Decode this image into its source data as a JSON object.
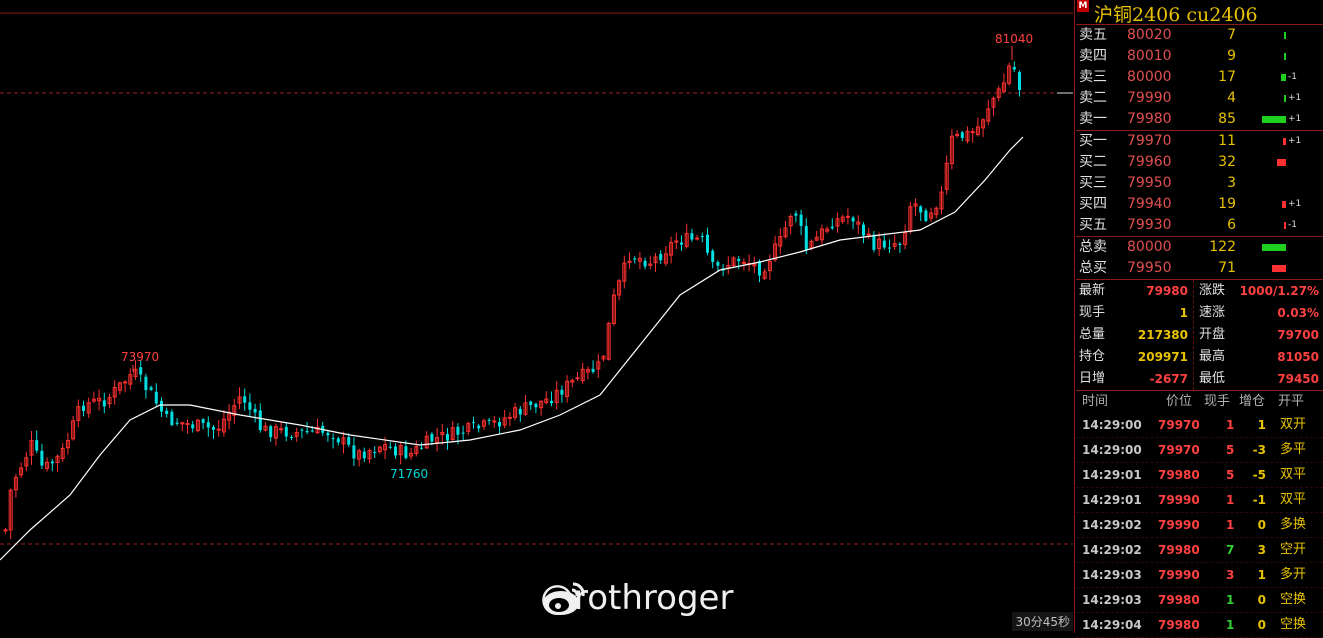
{
  "watermark": {
    "text": "@rothroger"
  },
  "timer": "30分45秒",
  "chart": {
    "high_label": "81040",
    "peak_label": "73970",
    "low_label": "71760",
    "colors": {
      "up": "#ff3030",
      "down": "#00e0e0",
      "ma": "#ffffff",
      "bg": "#000000"
    }
  },
  "chart_data": {
    "type": "candlestick",
    "annotations": [
      "81040",
      "73970",
      "71760"
    ]
  },
  "panel": {
    "title": "沪铜2406  cu2406",
    "title_badge": "M",
    "sell": [
      {
        "label": "卖五",
        "price": "80020",
        "qty": "7",
        "chg": ""
      },
      {
        "label": "卖四",
        "price": "80010",
        "qty": "9",
        "chg": ""
      },
      {
        "label": "卖三",
        "price": "80000",
        "qty": "17",
        "chg": "-1"
      },
      {
        "label": "卖二",
        "price": "79990",
        "qty": "4",
        "chg": "+1"
      },
      {
        "label": "卖一",
        "price": "79980",
        "qty": "85",
        "chg": "+1"
      }
    ],
    "buy": [
      {
        "label": "买一",
        "price": "79970",
        "qty": "11",
        "chg": "+1"
      },
      {
        "label": "买二",
        "price": "79960",
        "qty": "32",
        "chg": ""
      },
      {
        "label": "买三",
        "price": "79950",
        "qty": "3",
        "chg": ""
      },
      {
        "label": "买四",
        "price": "79940",
        "qty": "19",
        "chg": "+1"
      },
      {
        "label": "买五",
        "price": "79930",
        "qty": "6",
        "chg": "-1"
      }
    ],
    "totals": [
      {
        "label": "总卖",
        "price": "80000",
        "qty": "122"
      },
      {
        "label": "总买",
        "price": "79950",
        "qty": "71"
      }
    ],
    "stats": [
      {
        "k": "最新",
        "v": "79980",
        "k2": "涨跌",
        "v2": "1000/1.27%"
      },
      {
        "k": "现手",
        "v": "1",
        "k2": "速涨",
        "v2": "0.03%"
      },
      {
        "k": "总量",
        "v": "217380",
        "k2": "开盘",
        "v2": "79700"
      },
      {
        "k": "持仓",
        "v": "209971",
        "k2": "最高",
        "v2": "81050"
      },
      {
        "k": "日增",
        "v": "-2677",
        "k2": "最低",
        "v2": "79450"
      }
    ],
    "ticks_header": {
      "time": "时间",
      "price": "价位",
      "vol": "现手",
      "oi": "增仓",
      "type": "开平"
    },
    "ticks": [
      {
        "time": "14:29:00",
        "price": "79970",
        "vol": "1",
        "oi": "1",
        "type": "双开"
      },
      {
        "time": "14:29:00",
        "price": "79970",
        "vol": "5",
        "oi": "-3",
        "type": "多平"
      },
      {
        "time": "14:29:01",
        "price": "79980",
        "vol": "5",
        "oi": "-5",
        "type": "双平"
      },
      {
        "time": "14:29:01",
        "price": "79990",
        "vol": "1",
        "oi": "-1",
        "type": "双平"
      },
      {
        "time": "14:29:02",
        "price": "79990",
        "vol": "1",
        "oi": "0",
        "type": "多换"
      },
      {
        "time": "14:29:02",
        "price": "79980",
        "vol": "7",
        "oi": "3",
        "type": "空开"
      },
      {
        "time": "14:29:03",
        "price": "79990",
        "vol": "3",
        "oi": "1",
        "type": "多开"
      },
      {
        "time": "14:29:03",
        "price": "79980",
        "vol": "1",
        "oi": "0",
        "type": "空换"
      },
      {
        "time": "14:29:04",
        "price": "79980",
        "vol": "1",
        "oi": "0",
        "type": "空换"
      }
    ]
  }
}
